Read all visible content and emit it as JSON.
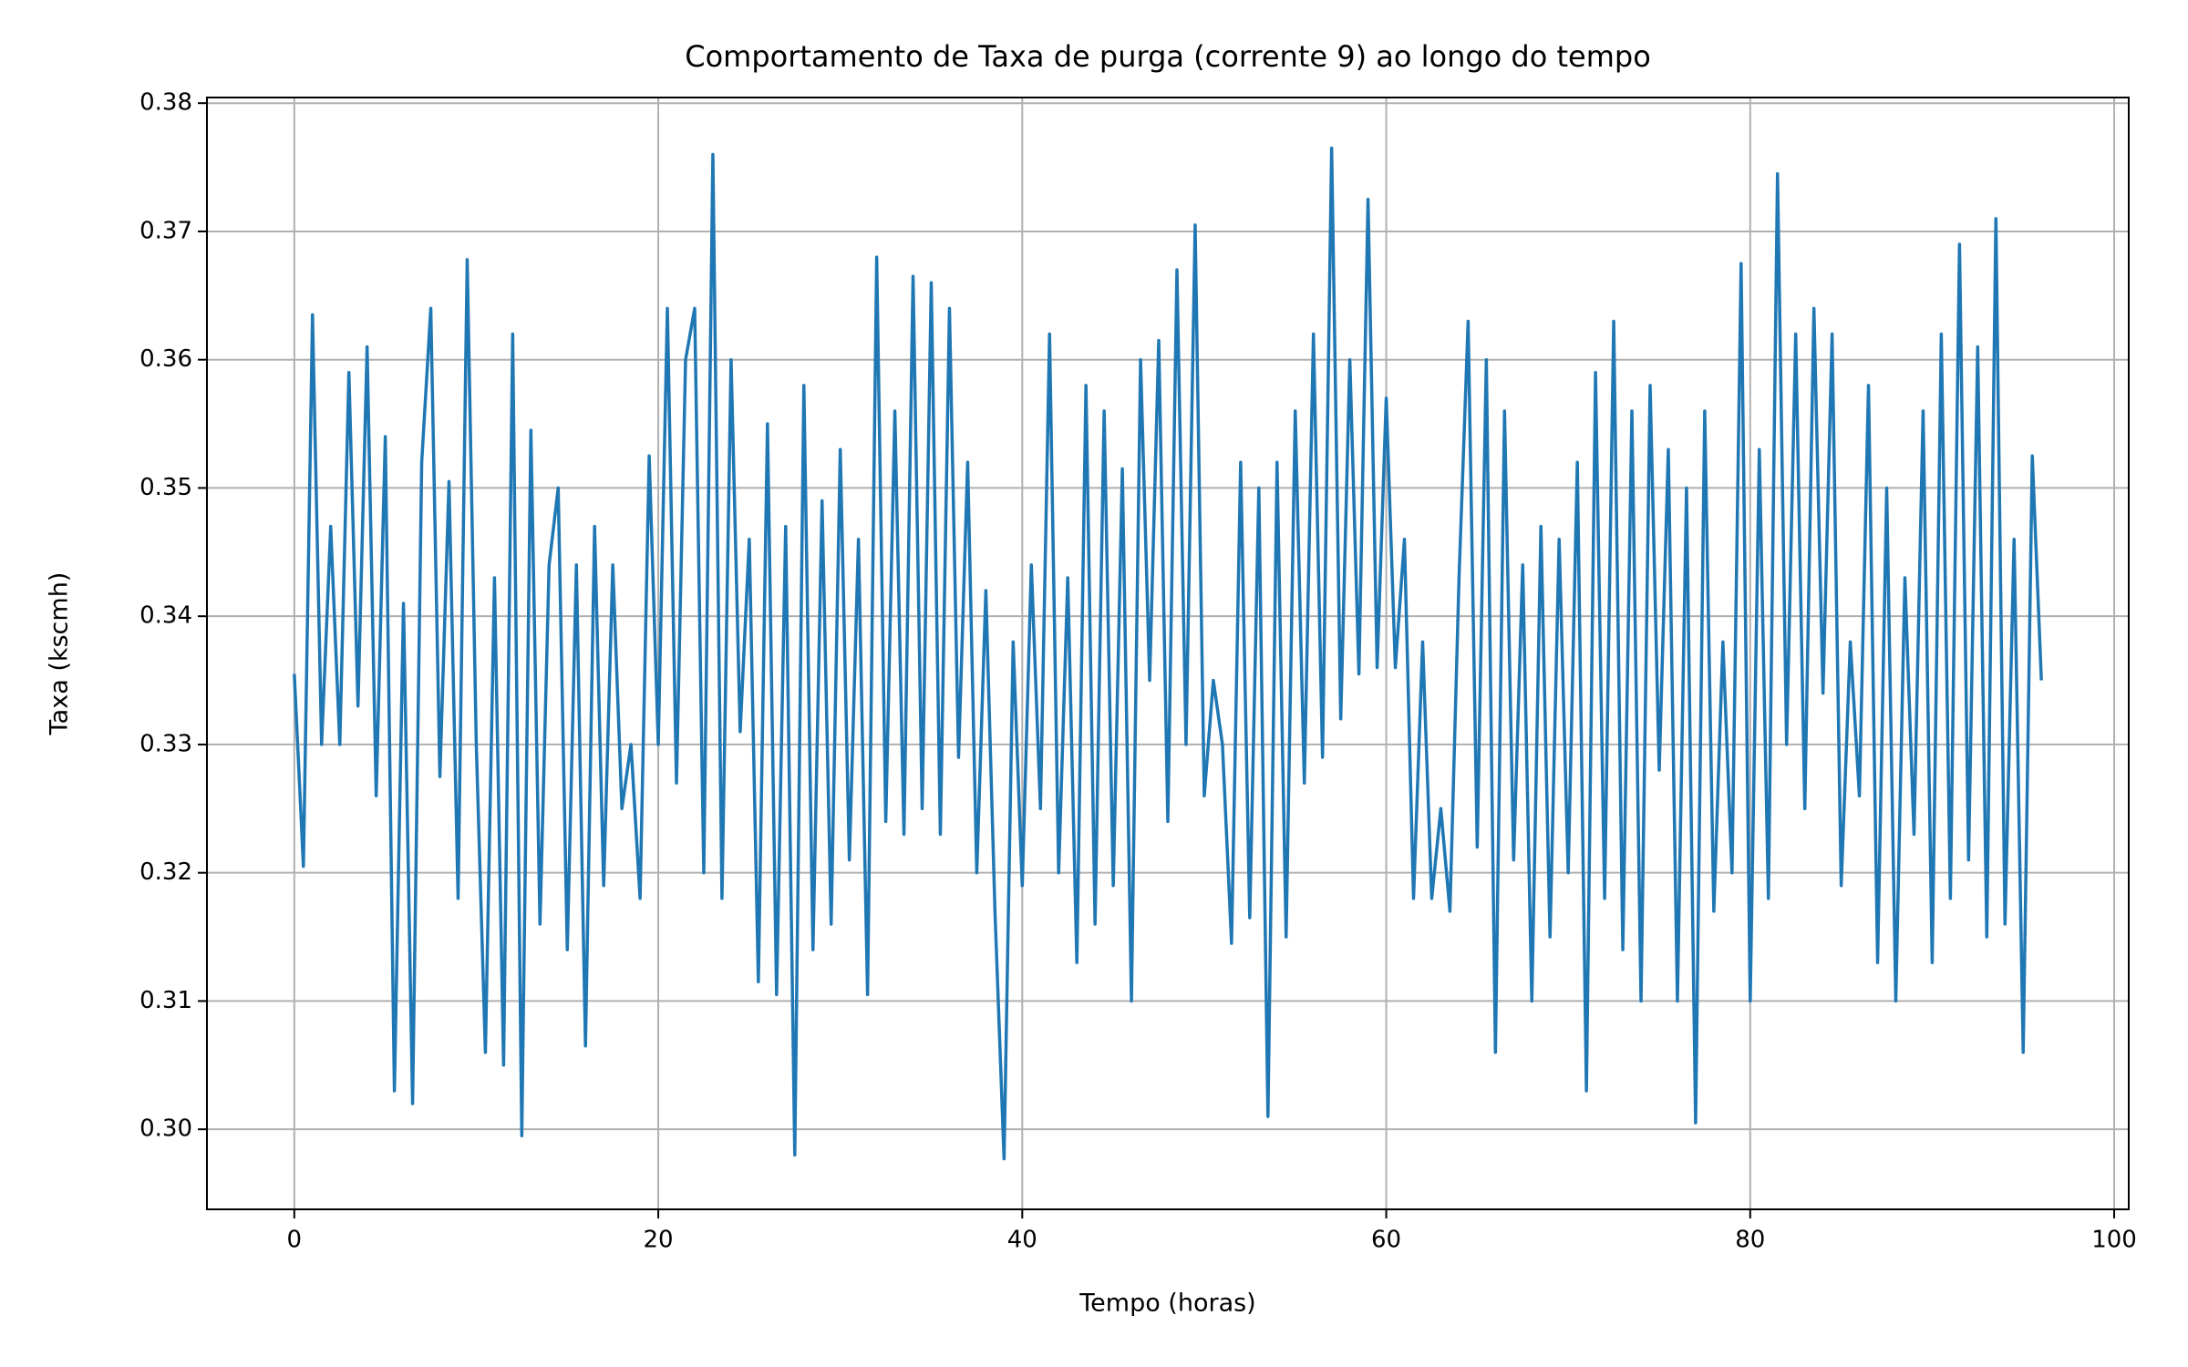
{
  "chart_data": {
    "type": "line",
    "title": "Comportamento de Taxa de purga (corrente 9) ao longo do tempo",
    "x_label": "Tempo (horas)",
    "y_label": "Taxa (kscmh)",
    "color": "#1f77b4",
    "grid": true,
    "xlim": [
      -4.8,
      100.8
    ],
    "ylim": [
      0.29376,
      0.38044
    ],
    "xticks": [
      0,
      20,
      40,
      60,
      80,
      100
    ],
    "yticks": [
      {
        "value": 0.3,
        "label": "0.30"
      },
      0.31,
      0.32,
      0.33,
      0.34,
      0.35,
      0.36,
      0.37,
      0.38
    ],
    "x": [
      0,
      0.5,
      1,
      1.5,
      2,
      2.5,
      3,
      3.5,
      4,
      4.5,
      5,
      5.5,
      6,
      6.5,
      7,
      7.5,
      8,
      8.5,
      9,
      9.5,
      10,
      10.5,
      11,
      11.5,
      12,
      12.5,
      13,
      13.5,
      14,
      14.5,
      15,
      15.5,
      16,
      16.5,
      17,
      17.5,
      18,
      18.5,
      19,
      19.5,
      20,
      20.5,
      21,
      21.5,
      22,
      22.5,
      23,
      23.5,
      24,
      24.5,
      25,
      25.5,
      26,
      26.5,
      27,
      27.5,
      28,
      28.5,
      29,
      29.5,
      30,
      30.5,
      31,
      31.5,
      32,
      32.5,
      33,
      33.5,
      34,
      34.5,
      35,
      35.5,
      36,
      36.5,
      37,
      37.5,
      38,
      38.5,
      39,
      39.5,
      40,
      40.5,
      41,
      41.5,
      42,
      42.5,
      43,
      43.5,
      44,
      44.5,
      45,
      45.5,
      46,
      46.5,
      47,
      47.5,
      48,
      48.5,
      49,
      49.5,
      50,
      50.5,
      51,
      51.5,
      52,
      52.5,
      53,
      53.5,
      54,
      54.5,
      55,
      55.5,
      56,
      56.5,
      57,
      57.5,
      58,
      58.5,
      59,
      59.5,
      60,
      60.5,
      61,
      61.5,
      62,
      62.5,
      63,
      63.5,
      64,
      64.5,
      65,
      65.5,
      66,
      66.5,
      67,
      67.5,
      68,
      68.5,
      69,
      69.5,
      70,
      70.5,
      71,
      71.5,
      72,
      72.5,
      73,
      73.5,
      74,
      74.5,
      75,
      75.5,
      76,
      76.5,
      77,
      77.5,
      78,
      78.5,
      79,
      79.5,
      80,
      80.5,
      81,
      81.5,
      82,
      82.5,
      83,
      83.5,
      84,
      84.5,
      85,
      85.5,
      86,
      86.5,
      87,
      87.5,
      88,
      88.5,
      89,
      89.5,
      90,
      90.5,
      91,
      91.5,
      92,
      92.5,
      93,
      93.5,
      94,
      94.5,
      95,
      95.5,
      96
    ],
    "values": [
      0.3355,
      0.3205,
      0.3635,
      0.33,
      0.347,
      0.33,
      0.359,
      0.333,
      0.361,
      0.326,
      0.354,
      0.303,
      0.341,
      0.302,
      0.352,
      0.364,
      0.3275,
      0.3505,
      0.318,
      0.3678,
      0.33,
      0.306,
      0.343,
      0.305,
      0.362,
      0.2995,
      0.3545,
      0.316,
      0.344,
      0.35,
      0.314,
      0.344,
      0.3065,
      0.347,
      0.319,
      0.344,
      0.325,
      0.33,
      0.318,
      0.3525,
      0.33,
      0.364,
      0.327,
      0.36,
      0.364,
      0.32,
      0.376,
      0.318,
      0.36,
      0.331,
      0.346,
      0.3115,
      0.355,
      0.3105,
      0.347,
      0.298,
      0.358,
      0.314,
      0.349,
      0.316,
      0.353,
      0.321,
      0.346,
      0.3105,
      0.368,
      0.324,
      0.356,
      0.323,
      0.3665,
      0.325,
      0.366,
      0.323,
      0.364,
      0.329,
      0.352,
      0.32,
      0.342,
      0.317,
      0.2977,
      0.338,
      0.319,
      0.344,
      0.325,
      0.362,
      0.32,
      0.343,
      0.313,
      0.358,
      0.316,
      0.356,
      0.319,
      0.3515,
      0.31,
      0.36,
      0.335,
      0.3615,
      0.324,
      0.367,
      0.33,
      0.3705,
      0.326,
      0.335,
      0.33,
      0.3145,
      0.352,
      0.3165,
      0.35,
      0.301,
      0.352,
      0.315,
      0.356,
      0.327,
      0.362,
      0.329,
      0.3765,
      0.332,
      0.36,
      0.3355,
      0.3725,
      0.336,
      0.357,
      0.336,
      0.346,
      0.318,
      0.338,
      0.318,
      0.325,
      0.317,
      0.343,
      0.363,
      0.322,
      0.36,
      0.306,
      0.356,
      0.321,
      0.344,
      0.31,
      0.347,
      0.315,
      0.346,
      0.32,
      0.352,
      0.303,
      0.359,
      0.318,
      0.363,
      0.314,
      0.356,
      0.31,
      0.358,
      0.328,
      0.353,
      0.31,
      0.35,
      0.3005,
      0.356,
      0.317,
      0.338,
      0.32,
      0.3675,
      0.31,
      0.353,
      0.318,
      0.3745,
      0.33,
      0.362,
      0.325,
      0.364,
      0.334,
      0.362,
      0.319,
      0.338,
      0.326,
      0.358,
      0.313,
      0.35,
      0.31,
      0.343,
      0.323,
      0.356,
      0.313,
      0.362,
      0.318,
      0.369,
      0.321,
      0.361,
      0.315,
      0.371,
      0.316,
      0.346,
      0.306,
      0.3525,
      0.335
    ]
  }
}
